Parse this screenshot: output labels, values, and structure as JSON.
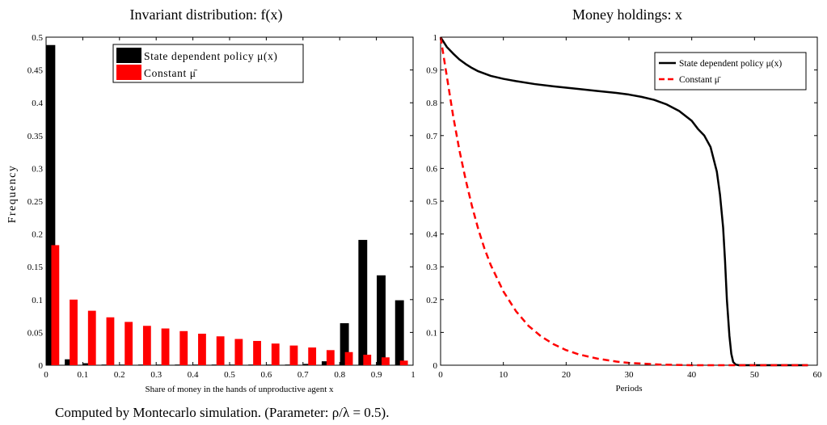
{
  "figure": {
    "caption": "Computed by Montecarlo simulation. (Parameter: ρ/λ = 0.5)."
  },
  "chart_data": [
    {
      "type": "bar",
      "title": "Invariant distribution: f(x)",
      "xlabel": "Share of money in the hands of unproductive agent x",
      "ylabel": "Frequency",
      "xlim": [
        0,
        1
      ],
      "ylim": [
        0,
        0.5
      ],
      "xticks": [
        "0",
        "0.1",
        "0.2",
        "0.3",
        "0.4",
        "0.5",
        "0.6",
        "0.7",
        "0.8",
        "0.9",
        "1"
      ],
      "yticks": [
        "0",
        "0.05",
        "0.1",
        "0.15",
        "0.2",
        "0.25",
        "0.3",
        "0.35",
        "0.4",
        "0.45",
        "0.5"
      ],
      "legend_position": "top-center",
      "bin_centers": [
        0.025,
        0.075,
        0.125,
        0.175,
        0.225,
        0.275,
        0.325,
        0.375,
        0.425,
        0.475,
        0.525,
        0.575,
        0.625,
        0.675,
        0.725,
        0.775,
        0.825,
        0.875,
        0.925,
        0.975
      ],
      "series": [
        {
          "name": "State dependent policy μ(x)",
          "color": "#000000",
          "values": [
            0.488,
            0.009,
            0.003,
            0.001,
            0.001,
            0.001,
            0.001,
            0.001,
            0.001,
            0.001,
            0.001,
            0.001,
            0.001,
            0.001,
            0.002,
            0.006,
            0.064,
            0.191,
            0.137,
            0.099
          ]
        },
        {
          "name": "Constant μ̄",
          "color": "#ff0000",
          "values": [
            0.183,
            0.1,
            0.083,
            0.073,
            0.066,
            0.06,
            0.056,
            0.052,
            0.048,
            0.044,
            0.04,
            0.037,
            0.033,
            0.03,
            0.027,
            0.023,
            0.02,
            0.016,
            0.012,
            0.007
          ]
        }
      ]
    },
    {
      "type": "line",
      "title": "Money holdings: x",
      "xlabel": "Periods",
      "ylabel": "",
      "xlim": [
        0,
        60
      ],
      "ylim": [
        0,
        1
      ],
      "xticks": [
        "0",
        "10",
        "20",
        "30",
        "40",
        "50",
        "60"
      ],
      "yticks": [
        "0",
        "0.1",
        "0.2",
        "0.3",
        "0.4",
        "0.5",
        "0.6",
        "0.7",
        "0.8",
        "0.9",
        "1"
      ],
      "legend_position": "top-right",
      "series": [
        {
          "name": "State dependent policy μ(x)",
          "color": "#000000",
          "style": "solid",
          "x": [
            0,
            1,
            2,
            3,
            4,
            5,
            6,
            8,
            10,
            12,
            15,
            18,
            20,
            22,
            25,
            28,
            30,
            32,
            34,
            36,
            38,
            40,
            41,
            42,
            43,
            44,
            44.5,
            45,
            45.3,
            45.6,
            46,
            46.3,
            46.6,
            47,
            47.5,
            50,
            55,
            58.5
          ],
          "y": [
            1.0,
            0.97,
            0.95,
            0.932,
            0.918,
            0.906,
            0.896,
            0.882,
            0.873,
            0.866,
            0.857,
            0.85,
            0.846,
            0.842,
            0.836,
            0.83,
            0.825,
            0.818,
            0.809,
            0.795,
            0.775,
            0.745,
            0.72,
            0.7,
            0.665,
            0.59,
            0.52,
            0.42,
            0.32,
            0.2,
            0.09,
            0.035,
            0.01,
            0.002,
            0.0,
            0.0,
            0.0,
            0.0
          ]
        },
        {
          "name": "Constant μ̄",
          "color": "#ff0000",
          "style": "dashed",
          "x": [
            0,
            1,
            2,
            3,
            4,
            5,
            6,
            7,
            8,
            10,
            12,
            14,
            16,
            18,
            20,
            22,
            25,
            28,
            30,
            35,
            40,
            45,
            50,
            55,
            58.5
          ],
          "y": [
            1.0,
            0.88,
            0.76,
            0.655,
            0.565,
            0.485,
            0.415,
            0.355,
            0.305,
            0.225,
            0.165,
            0.12,
            0.088,
            0.064,
            0.046,
            0.033,
            0.02,
            0.011,
            0.007,
            0.002,
            0.0,
            0.0,
            0.0,
            0.0,
            0.0
          ]
        }
      ]
    }
  ]
}
